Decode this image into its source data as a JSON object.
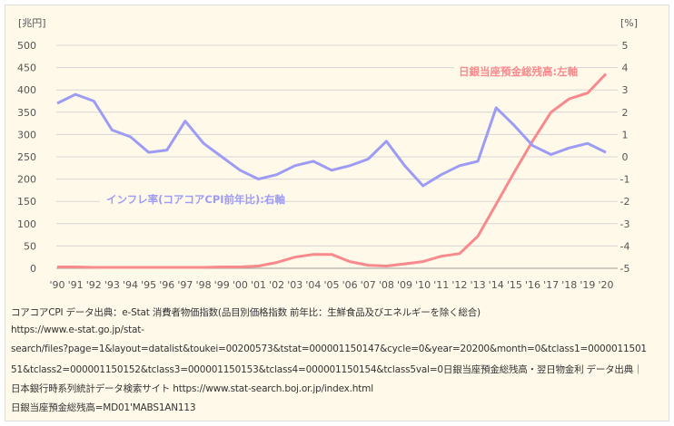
{
  "chart_data": {
    "type": "line",
    "left_axis_label": "[兆円]",
    "right_axis_label": "[%]",
    "categories": [
      "'90",
      "'91",
      "'92",
      "'93",
      "'94",
      "'95",
      "'96",
      "'97",
      "'98",
      "'99",
      "'00",
      "'01",
      "'02",
      "'03",
      "'04",
      "'05",
      "'06",
      "'07",
      "'08",
      "'09",
      "'10",
      "'11",
      "'12",
      "'13",
      "'14",
      "'15",
      "'16",
      "'17",
      "'18",
      "'19",
      "'20"
    ],
    "left_ylim": [
      0,
      500
    ],
    "left_ticks": [
      0,
      50,
      100,
      150,
      200,
      250,
      300,
      350,
      400,
      450,
      500
    ],
    "right_ylim": [
      -5,
      5
    ],
    "right_ticks": [
      -5,
      -4,
      -3,
      -2,
      -1,
      0,
      1,
      2,
      3,
      4,
      5
    ],
    "grid": true,
    "series": [
      {
        "name": "日銀当座預金総残高:左軸",
        "axis": "left",
        "color": "#f8898c",
        "values": [
          3,
          3,
          2,
          2,
          2,
          2,
          2,
          2,
          2,
          3,
          3,
          5,
          13,
          25,
          31,
          31,
          15,
          7,
          5,
          10,
          15,
          27,
          33,
          72,
          144,
          216,
          286,
          350,
          380,
          393,
          436
        ]
      },
      {
        "name": "インフレ率(コアコアCPI前年比):右軸",
        "axis": "right",
        "color": "#9d9cf5",
        "values": [
          2.4,
          2.8,
          2.5,
          1.2,
          0.9,
          0.2,
          0.3,
          1.6,
          0.6,
          0.0,
          -0.6,
          -1.0,
          -0.8,
          -0.4,
          -0.2,
          -0.6,
          -0.4,
          -0.1,
          0.7,
          -0.4,
          -1.3,
          -0.8,
          -0.4,
          -0.2,
          2.2,
          1.4,
          0.5,
          0.1,
          0.4,
          0.6,
          0.2
        ]
      }
    ]
  },
  "sources": [
    "コアコアCPI データ出典：e-Stat 消費者物価指数(品目別価格指数 前年比：生鮮食品及びエネルギーを除く総合)",
    "https://www.e-stat.go.jp/stat-",
    "search/files?page=1&layout=datalist&toukei=00200573&tstat=000001150147&cycle=0&year=20200&month=0&tclass1=0000011501",
    "51&tclass2=000001150152&tclass3=000001150153&tclass4=000001150154&tclass5val=0日銀当座預金総残高・翌日物金利 データ出典｜",
    "日本銀行時系列統計データ検索サイト https://www.stat-search.boj.or.jp/index.html",
    "日銀当座預金総残高=MD01'MABS1AN113"
  ]
}
